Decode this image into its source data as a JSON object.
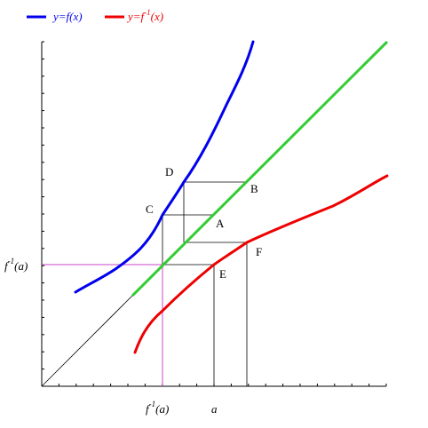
{
  "legend": {
    "items": [
      {
        "pre": "y=f(x)",
        "sup": "",
        "post": "",
        "color": "#0000ee"
      },
      {
        "pre": "y=f",
        "sup": "-1",
        "post": "(x)",
        "color": "#ee0000"
      }
    ]
  },
  "points": {
    "A": "A",
    "B": "B",
    "C": "C",
    "D": "D",
    "E": "E",
    "F": "F"
  },
  "axis_labels": {
    "x_finv": {
      "base": "f",
      "sup": "-1",
      "tail": "(a)"
    },
    "x_a": "a",
    "y_finv": {
      "base": "f",
      "sup": "-1",
      "tail": "(a)"
    }
  },
  "colors": {
    "f_curve": "#0000ee",
    "finv_curve": "#ee0000",
    "identity_line": "#33cc33",
    "guide_magenta": "#cc44cc",
    "axes": "#000000"
  }
}
